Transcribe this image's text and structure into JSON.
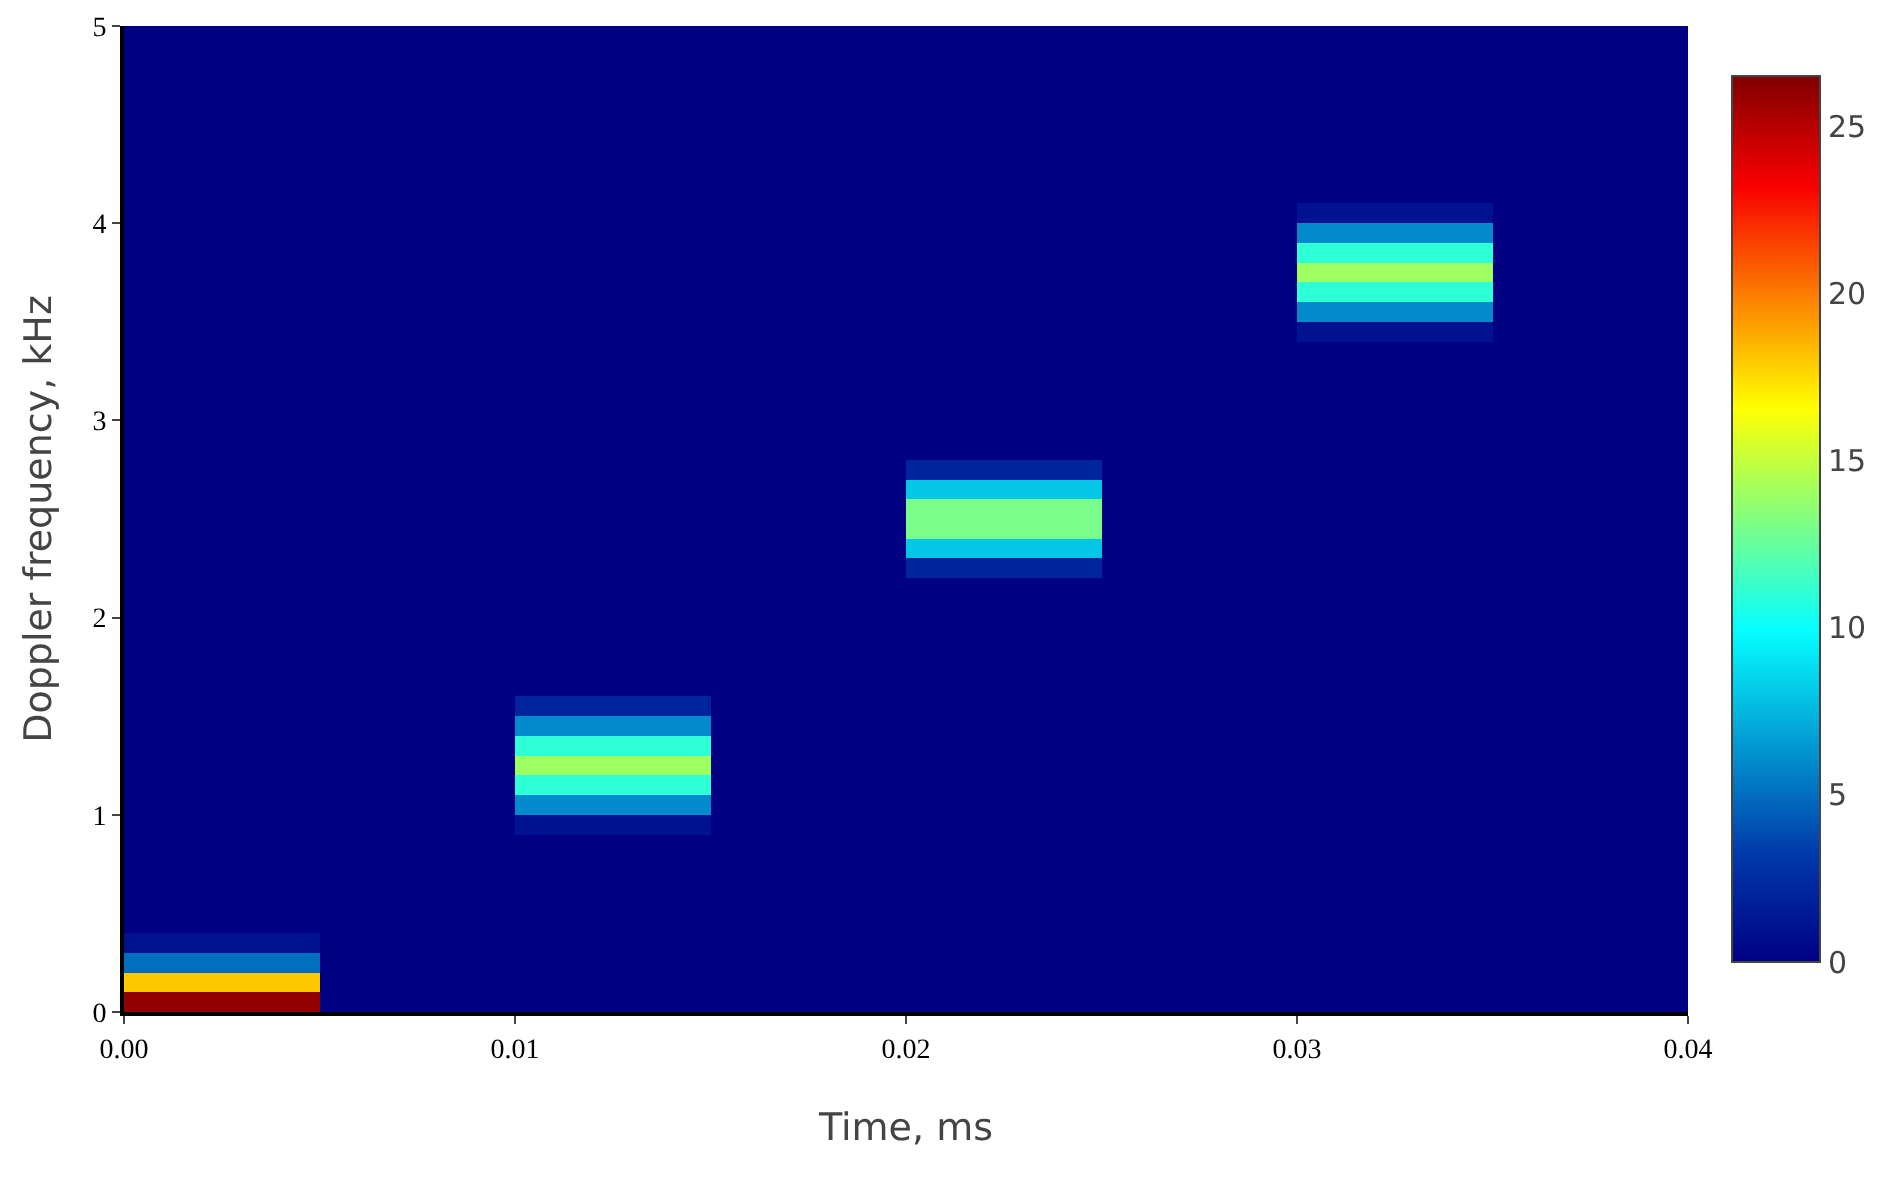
{
  "chart_data": {
    "type": "heatmap",
    "xlabel": "Time, ms",
    "ylabel": "Doppler frequency, kHz",
    "x": [
      0.0025,
      0.0075,
      0.0125,
      0.0175,
      0.0225,
      0.0275,
      0.0325,
      0.0375
    ],
    "y": [
      4.95,
      4.85,
      4.75,
      4.65,
      4.55,
      4.45,
      4.35,
      4.25,
      4.15,
      4.05,
      3.95,
      3.85,
      3.75,
      3.65,
      3.55,
      3.45,
      3.35,
      3.25,
      3.15,
      3.05,
      2.95,
      2.85,
      2.75,
      2.65,
      2.55,
      2.45,
      2.35,
      2.25,
      2.15,
      2.05,
      1.95,
      1.85,
      1.75,
      1.65,
      1.55,
      1.45,
      1.35,
      1.25,
      1.15,
      1.05,
      0.95,
      0.85,
      0.75,
      0.65,
      0.55,
      0.45,
      0.35,
      0.25,
      0.15,
      0.05
    ],
    "cells": [
      [
        0,
        0,
        0,
        0,
        0,
        0,
        0,
        0
      ],
      [
        0,
        0,
        0,
        0,
        0,
        0,
        0,
        0
      ],
      [
        0,
        0,
        0,
        0,
        0,
        0,
        0,
        0
      ],
      [
        0,
        0,
        0,
        0,
        0,
        0,
        0,
        0
      ],
      [
        0,
        0,
        0,
        0,
        0,
        0,
        0,
        0
      ],
      [
        0,
        0,
        0,
        0,
        0,
        0,
        0,
        0
      ],
      [
        0,
        0,
        0,
        0,
        0,
        0,
        0,
        0
      ],
      [
        0,
        0,
        0,
        0,
        0,
        0,
        0,
        0
      ],
      [
        0,
        0,
        0,
        0,
        0,
        0,
        0,
        0
      ],
      [
        0,
        0,
        0,
        0,
        0,
        0,
        1,
        0
      ],
      [
        0,
        0,
        0,
        0,
        0,
        0,
        6,
        0
      ],
      [
        0,
        0,
        0,
        0,
        0,
        0,
        11,
        0
      ],
      [
        0,
        0,
        0,
        0,
        0,
        0,
        14,
        0
      ],
      [
        0,
        0,
        0,
        0,
        0,
        0,
        11,
        0
      ],
      [
        0,
        0,
        0,
        0,
        0,
        0,
        6,
        0
      ],
      [
        0,
        0,
        0,
        0,
        0,
        0,
        1,
        0
      ],
      [
        0,
        0,
        0,
        0,
        0,
        0,
        0,
        0
      ],
      [
        0,
        0,
        0,
        0,
        0,
        0,
        0,
        0
      ],
      [
        0,
        0,
        0,
        0,
        0,
        0,
        0,
        0
      ],
      [
        0,
        0,
        0,
        0,
        0,
        0,
        0,
        0
      ],
      [
        0,
        0,
        0,
        0,
        0,
        0,
        0,
        0
      ],
      [
        0,
        0,
        0,
        0,
        0,
        0,
        0,
        0
      ],
      [
        0,
        0,
        0,
        0,
        2,
        0,
        0,
        0
      ],
      [
        0,
        0,
        0,
        0,
        8,
        0,
        0,
        0
      ],
      [
        0,
        0,
        0,
        0,
        13,
        0,
        0,
        0
      ],
      [
        0,
        0,
        0,
        0,
        13,
        0,
        0,
        0
      ],
      [
        0,
        0,
        0,
        0,
        8,
        0,
        0,
        0
      ],
      [
        0,
        0,
        0,
        0,
        2,
        0,
        0,
        0
      ],
      [
        0,
        0,
        0,
        0,
        0,
        0,
        0,
        0
      ],
      [
        0,
        0,
        0,
        0,
        0,
        0,
        0,
        0
      ],
      [
        0,
        0,
        0,
        0,
        0,
        0,
        0,
        0
      ],
      [
        0,
        0,
        0,
        0,
        0,
        0,
        0,
        0
      ],
      [
        0,
        0,
        0,
        0,
        0,
        0,
        0,
        0
      ],
      [
        0,
        0,
        0,
        0,
        0,
        0,
        0,
        0
      ],
      [
        0,
        0,
        2,
        0,
        0,
        0,
        0,
        0
      ],
      [
        0,
        0,
        6,
        0,
        0,
        0,
        0,
        0
      ],
      [
        0,
        0,
        11,
        0,
        0,
        0,
        0,
        0
      ],
      [
        0,
        0,
        14,
        0,
        0,
        0,
        0,
        0
      ],
      [
        0,
        0,
        11,
        0,
        0,
        0,
        0,
        0
      ],
      [
        0,
        0,
        6,
        0,
        0,
        0,
        0,
        0
      ],
      [
        0,
        0,
        1,
        0,
        0,
        0,
        0,
        0
      ],
      [
        0,
        0,
        0,
        0,
        0,
        0,
        0,
        0
      ],
      [
        0,
        0,
        0,
        0,
        0,
        0,
        0,
        0
      ],
      [
        0,
        0,
        0,
        0,
        0,
        0,
        0,
        0
      ],
      [
        0,
        0,
        0,
        0,
        0,
        0,
        0,
        0
      ],
      [
        0,
        0,
        0,
        0,
        0,
        0,
        0,
        0
      ],
      [
        1,
        0,
        0,
        0,
        0,
        0,
        0,
        0
      ],
      [
        5,
        0,
        0,
        0,
        0,
        0,
        0,
        0
      ],
      [
        18,
        0,
        0,
        0,
        0,
        0,
        0,
        0
      ],
      [
        26,
        0,
        0,
        0,
        0,
        0,
        0,
        0
      ]
    ],
    "xlim": [
      0,
      0.04
    ],
    "xticks": [
      {
        "value": 0,
        "label": "0.00"
      },
      {
        "value": 0.01,
        "label": "0.01"
      },
      {
        "value": 0.02,
        "label": "0.02"
      },
      {
        "value": 0.03,
        "label": "0.03"
      },
      {
        "value": 0.04,
        "label": "0.04"
      }
    ],
    "ylim": [
      0,
      5
    ],
    "yticks": [
      0,
      1,
      2,
      3,
      4,
      5
    ],
    "clim": [
      0,
      26.5
    ],
    "cticks": [
      0,
      5,
      10,
      15,
      20,
      25
    ]
  }
}
